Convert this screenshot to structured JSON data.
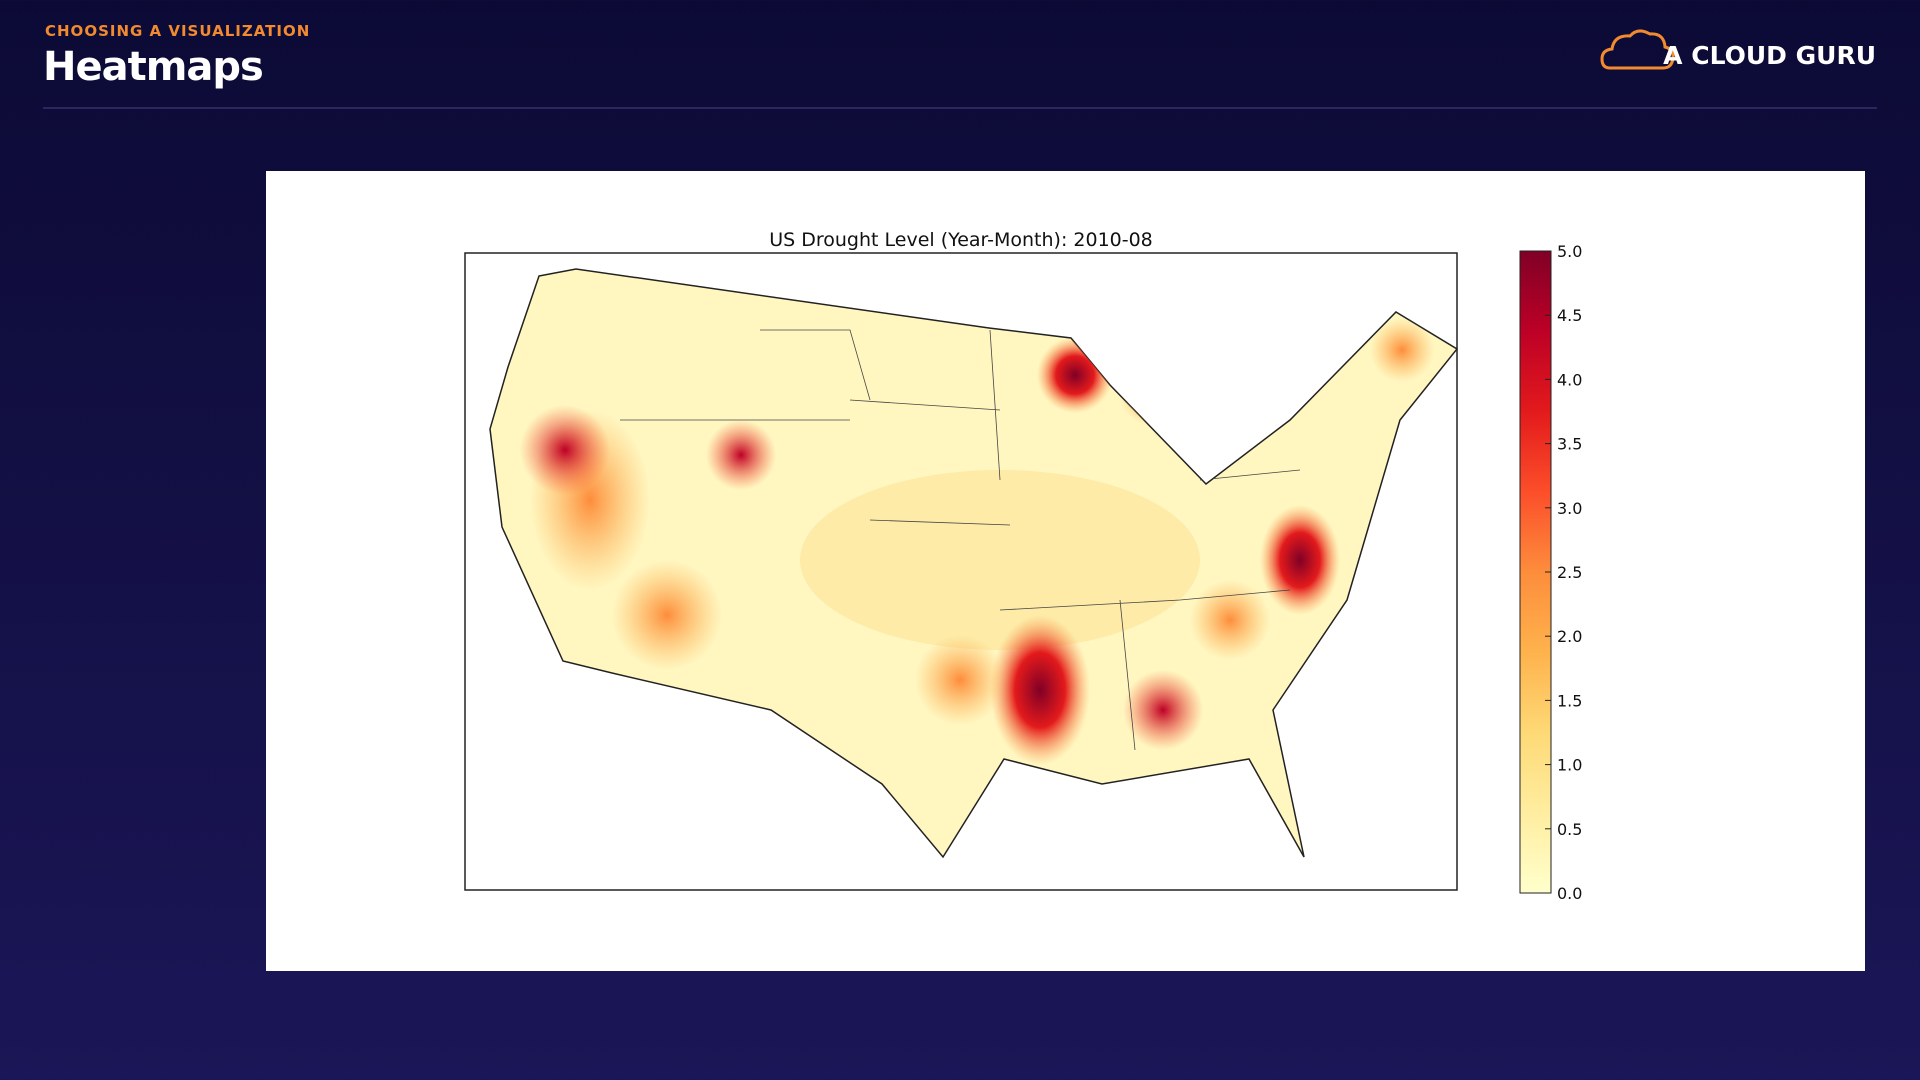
{
  "header": {
    "eyebrow": "CHOOSING A VISUALIZATION",
    "title": "Heatmaps"
  },
  "logo": {
    "text": "A CLOUD GURU"
  },
  "chart_data": {
    "type": "colorbar-map",
    "title": "US Drought Level (Year-Month): 2010-08",
    "clim": [
      0,
      5
    ],
    "cticks": [
      {
        "value": 0,
        "label": "0.0"
      },
      {
        "value": 0.5,
        "label": "0.5"
      },
      {
        "value": 1,
        "label": "1.0"
      },
      {
        "value": 1.5,
        "label": "1.5"
      },
      {
        "value": 2,
        "label": "2.0"
      },
      {
        "value": 2.5,
        "label": "2.5"
      },
      {
        "value": 3,
        "label": "3.0"
      },
      {
        "value": 3.5,
        "label": "3.5"
      },
      {
        "value": 4,
        "label": "4.0"
      },
      {
        "value": 4.5,
        "label": "4.5"
      },
      {
        "value": 5,
        "label": "5.0"
      }
    ],
    "colormap": [
      "#ffffcc",
      "#ffeda0",
      "#fed976",
      "#feb24c",
      "#fd8d3c",
      "#fc4e2a",
      "#e31a1c",
      "#bd0026",
      "#800026"
    ]
  }
}
